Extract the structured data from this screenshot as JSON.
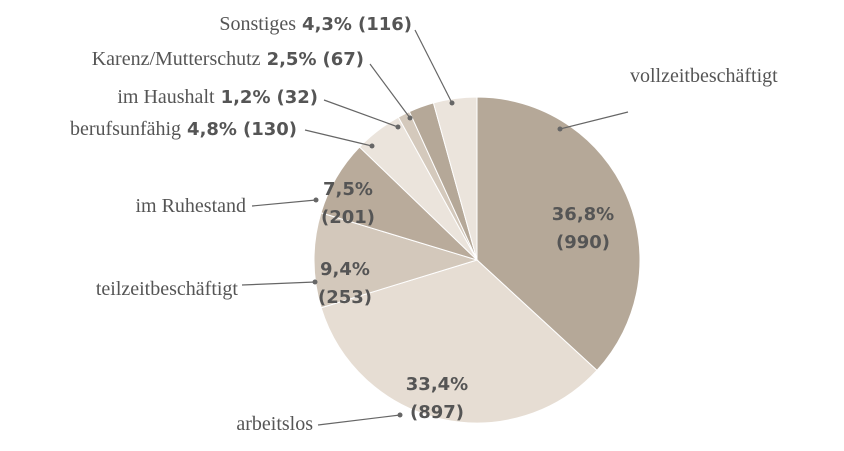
{
  "chart_data": {
    "type": "pie",
    "categories": [
      "vollzeitbeschäftigt",
      "arbeitslos",
      "teilzeitbeschäftigt",
      "im Ruhestand",
      "berufsunfähig",
      "im Haushalt",
      "Karenz/Mutterschutz",
      "Sonstiges"
    ],
    "values": [
      36.8,
      33.4,
      9.4,
      7.5,
      4.8,
      1.2,
      2.5,
      4.3
    ],
    "value_labels": [
      "36,8%",
      "33,4%",
      "9,4%",
      "7,5%",
      "4,8%",
      "1,2%",
      "2,5%",
      "4,3%"
    ],
    "counts": [
      990,
      897,
      253,
      201,
      130,
      32,
      67,
      116
    ],
    "count_labels": [
      "(990)",
      "(897)",
      "(253)",
      "(201)",
      "(130)",
      "(32)",
      "(67)",
      "(116)"
    ],
    "colors": [
      "#b5a898",
      "#e6ddd3",
      "#d3c8bb",
      "#b9ab9b",
      "#ebe4dc",
      "#d4c9bc",
      "#b5a898",
      "#ebe4dc"
    ]
  }
}
